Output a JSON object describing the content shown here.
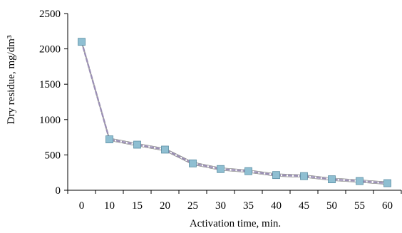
{
  "chart_data": {
    "type": "line",
    "title": "",
    "xlabel": "Activation time, min.",
    "ylabel": "Dry residue, mg/dm³",
    "categories": [
      "0",
      "10",
      "15",
      "20",
      "25",
      "30",
      "35",
      "40",
      "45",
      "50",
      "55",
      "60"
    ],
    "series": [
      {
        "values": [
          2100,
          720,
          645,
          575,
          380,
          300,
          270,
          215,
          200,
          155,
          130,
          100
        ]
      }
    ],
    "yticks": [
      "0",
      "500",
      "1000",
      "1500",
      "2000",
      "2500"
    ],
    "ylim": [
      0,
      2500
    ],
    "grid": false,
    "legend": "none",
    "colors": {
      "marker_fill": "#8fbfd2",
      "marker_stroke": "#5a8ea3",
      "line_main": "#9b8fb5",
      "line_outline": "#7f7f7f",
      "axis": "#000000"
    }
  }
}
